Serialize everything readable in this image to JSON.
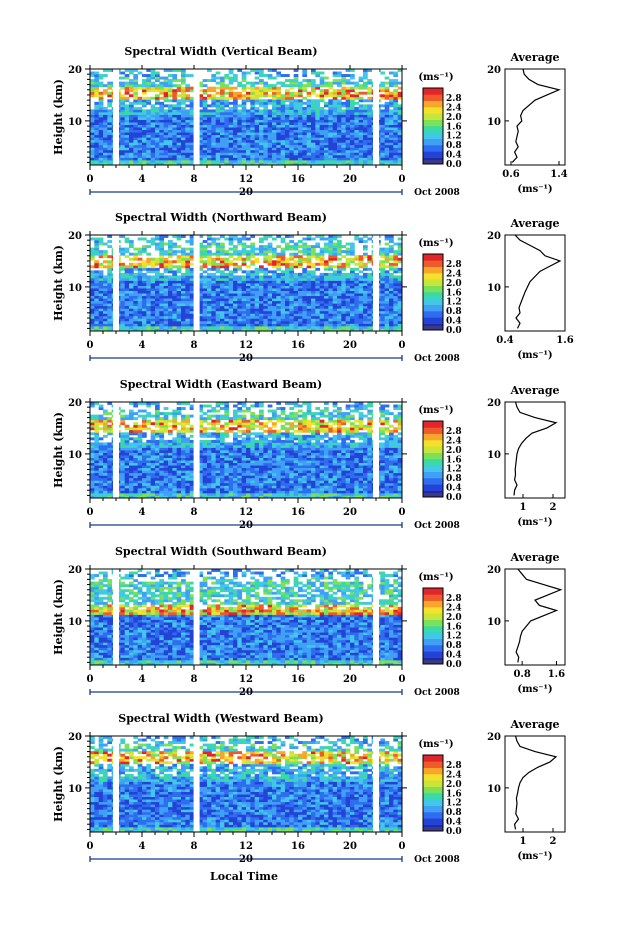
{
  "figure": {
    "x_axis_label": "Local Time",
    "date_label": "Oct 2008",
    "day_label": "20",
    "colorbar_unit": "(ms⁻¹)",
    "avg_title": "Average",
    "avg_xlabel": "(ms⁻¹)"
  },
  "colors": {
    "colormap": [
      "#1f2a9c",
      "#2443d6",
      "#2f6df0",
      "#3fa0f5",
      "#41c8e8",
      "#39d9a8",
      "#7be05a",
      "#c8e63a",
      "#f3e12c",
      "#f7a62a",
      "#f0592a",
      "#e0262a"
    ],
    "zero_color": "#3a3a8a",
    "background": "#ffffff"
  },
  "chart_data": [
    {
      "type": "heatmap",
      "title": "Spectral Width (Vertical Beam)",
      "ylabel": "Height (km)",
      "xlim": [
        0,
        24
      ],
      "ylim": [
        1.5,
        20
      ],
      "x_ticks": [
        "0",
        "4",
        "8",
        "12",
        "16",
        "20",
        "0"
      ],
      "y_ticks": [
        "10",
        "20"
      ],
      "colorbar_ticks": [
        "2.8",
        "2.4",
        "2.0",
        "1.6",
        "1.2",
        "0.8",
        "0.4",
        "0.0"
      ],
      "data_gaps_hours": [
        2.0,
        8.2,
        22.0
      ],
      "enhanced_layer_km": 15.5,
      "average": {
        "title": "Average",
        "xlim": [
          0.5,
          1.5
        ],
        "x_ticks": [
          "0.6",
          "1.4"
        ],
        "y_ticks": [
          "10",
          "20"
        ],
        "heights_km": [
          2,
          3,
          4,
          5,
          6,
          7,
          8,
          9,
          10,
          11,
          12,
          13,
          14,
          15,
          16,
          17,
          18,
          19,
          20
        ],
        "values": [
          0.62,
          0.7,
          0.66,
          0.72,
          0.68,
          0.7,
          0.72,
          0.7,
          0.78,
          0.76,
          0.8,
          0.9,
          1.0,
          1.2,
          1.4,
          1.05,
          0.9,
          0.82,
          0.8
        ]
      }
    },
    {
      "type": "heatmap",
      "title": "Spectral Width (Northward Beam)",
      "ylabel": "Height (km)",
      "xlim": [
        0,
        24
      ],
      "ylim": [
        1.5,
        20
      ],
      "x_ticks": [
        "0",
        "4",
        "8",
        "12",
        "16",
        "20",
        "0"
      ],
      "y_ticks": [
        "10",
        "20"
      ],
      "colorbar_ticks": [
        "2.8",
        "2.4",
        "2.0",
        "1.6",
        "1.2",
        "0.8",
        "0.4",
        "0.0"
      ],
      "data_gaps_hours": [
        2.0,
        8.2,
        22.0
      ],
      "enhanced_layer_km": 15.0,
      "average": {
        "title": "Average",
        "xlim": [
          0.4,
          1.6
        ],
        "x_ticks": [
          "0.4",
          "1.6"
        ],
        "y_ticks": [
          "10",
          "20"
        ],
        "heights_km": [
          2,
          3,
          4,
          5,
          6,
          7,
          8,
          9,
          10,
          11,
          12,
          13,
          14,
          15,
          16,
          17,
          18,
          19,
          20
        ],
        "values": [
          0.65,
          0.7,
          0.62,
          0.7,
          0.68,
          0.72,
          0.76,
          0.8,
          0.85,
          0.9,
          1.0,
          1.1,
          1.3,
          1.5,
          1.2,
          1.1,
          0.9,
          0.7,
          0.6
        ]
      }
    },
    {
      "type": "heatmap",
      "title": "Spectral Width (Eastward Beam)",
      "ylabel": "Height (km)",
      "xlim": [
        0,
        24
      ],
      "ylim": [
        1.5,
        20
      ],
      "x_ticks": [
        "0",
        "4",
        "8",
        "12",
        "16",
        "20",
        "0"
      ],
      "y_ticks": [
        "10",
        "20"
      ],
      "colorbar_ticks": [
        "2.8",
        "2.4",
        "2.0",
        "1.6",
        "1.2",
        "0.8",
        "0.4",
        "0.0"
      ],
      "data_gaps_hours": [
        2.0,
        8.2,
        22.0
      ],
      "enhanced_layer_km": 15.5,
      "average": {
        "title": "Average",
        "xlim": [
          0.4,
          2.4
        ],
        "x_ticks": [
          "1",
          "2"
        ],
        "y_ticks": [
          "10",
          "20"
        ],
        "heights_km": [
          2,
          3,
          4,
          5,
          6,
          7,
          8,
          9,
          10,
          11,
          12,
          13,
          14,
          15,
          16,
          17,
          18,
          19,
          20
        ],
        "values": [
          0.7,
          0.72,
          0.8,
          0.72,
          0.75,
          0.74,
          0.76,
          0.78,
          0.8,
          0.85,
          0.95,
          1.1,
          1.3,
          1.8,
          2.1,
          1.4,
          0.9,
          0.8,
          0.75
        ]
      }
    },
    {
      "type": "heatmap",
      "title": "Spectral Width (Southward Beam)",
      "ylabel": "Height (km)",
      "xlim": [
        0,
        24
      ],
      "ylim": [
        1.5,
        20
      ],
      "x_ticks": [
        "0",
        "4",
        "8",
        "12",
        "16",
        "20",
        "0"
      ],
      "y_ticks": [
        "10",
        "20"
      ],
      "colorbar_ticks": [
        "2.8",
        "2.4",
        "2.0",
        "1.6",
        "1.2",
        "0.8",
        "0.4",
        "0.0"
      ],
      "data_gaps_hours": [
        2.0,
        8.2,
        22.0
      ],
      "enhanced_layer_km": 12.0,
      "average": {
        "title": "Average",
        "xlim": [
          0.4,
          1.8
        ],
        "x_ticks": [
          "0.8",
          "1.6"
        ],
        "y_ticks": [
          "10",
          "20"
        ],
        "heights_km": [
          2,
          3,
          4,
          5,
          6,
          7,
          8,
          9,
          10,
          11,
          12,
          13,
          14,
          15,
          16,
          17,
          18,
          19,
          20
        ],
        "values": [
          0.7,
          0.72,
          0.66,
          0.7,
          0.74,
          0.76,
          0.8,
          0.9,
          1.0,
          1.3,
          1.6,
          1.2,
          1.1,
          1.4,
          1.7,
          1.3,
          0.9,
          0.8,
          0.7
        ]
      }
    },
    {
      "type": "heatmap",
      "title": "Spectral Width (Westward Beam)",
      "ylabel": "Height (km)",
      "xlim": [
        0,
        24
      ],
      "ylim": [
        1.5,
        20
      ],
      "x_ticks": [
        "0",
        "4",
        "8",
        "12",
        "16",
        "20",
        "0"
      ],
      "y_ticks": [
        "10",
        "20"
      ],
      "colorbar_ticks": [
        "2.8",
        "2.4",
        "2.0",
        "1.6",
        "1.2",
        "0.8",
        "0.4",
        "0.0"
      ],
      "data_gaps_hours": [
        2.0,
        8.2,
        22.0
      ],
      "enhanced_layer_km": 16.0,
      "average": {
        "title": "Average",
        "xlim": [
          0.4,
          2.4
        ],
        "x_ticks": [
          "1",
          "2"
        ],
        "y_ticks": [
          "10",
          "20"
        ],
        "heights_km": [
          2,
          3,
          4,
          5,
          6,
          7,
          8,
          9,
          10,
          11,
          12,
          13,
          14,
          15,
          16,
          17,
          18,
          19,
          20
        ],
        "values": [
          0.75,
          0.72,
          0.85,
          0.76,
          0.78,
          0.8,
          0.78,
          0.82,
          0.85,
          0.9,
          1.0,
          1.2,
          1.5,
          1.9,
          2.1,
          1.4,
          0.9,
          0.8,
          0.75
        ]
      }
    }
  ]
}
